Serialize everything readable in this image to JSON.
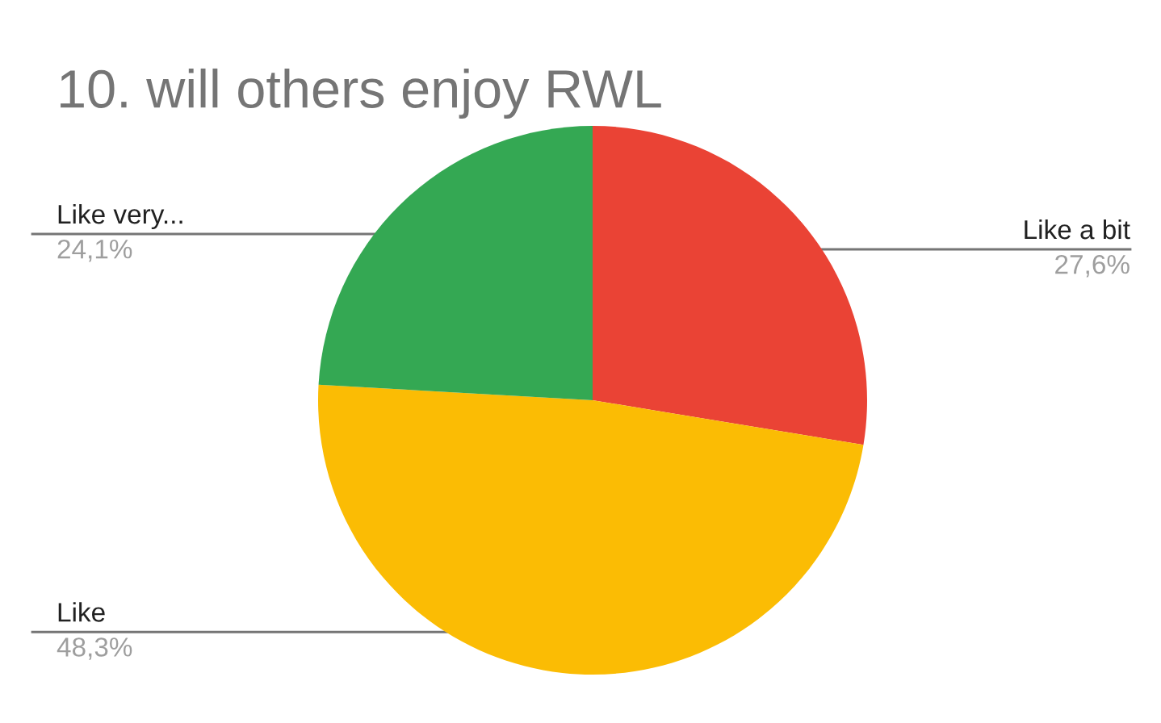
{
  "chart_data": {
    "type": "pie",
    "title": "10. will others enjoy RWL",
    "categories": [
      "Like a bit",
      "Like",
      "Like very..."
    ],
    "values": [
      27.6,
      48.3,
      24.1
    ],
    "colors": [
      "#ea4335",
      "#fbbc04",
      "#34a853"
    ],
    "value_labels": [
      "27,6%",
      "48,3%",
      "24,1%"
    ]
  }
}
